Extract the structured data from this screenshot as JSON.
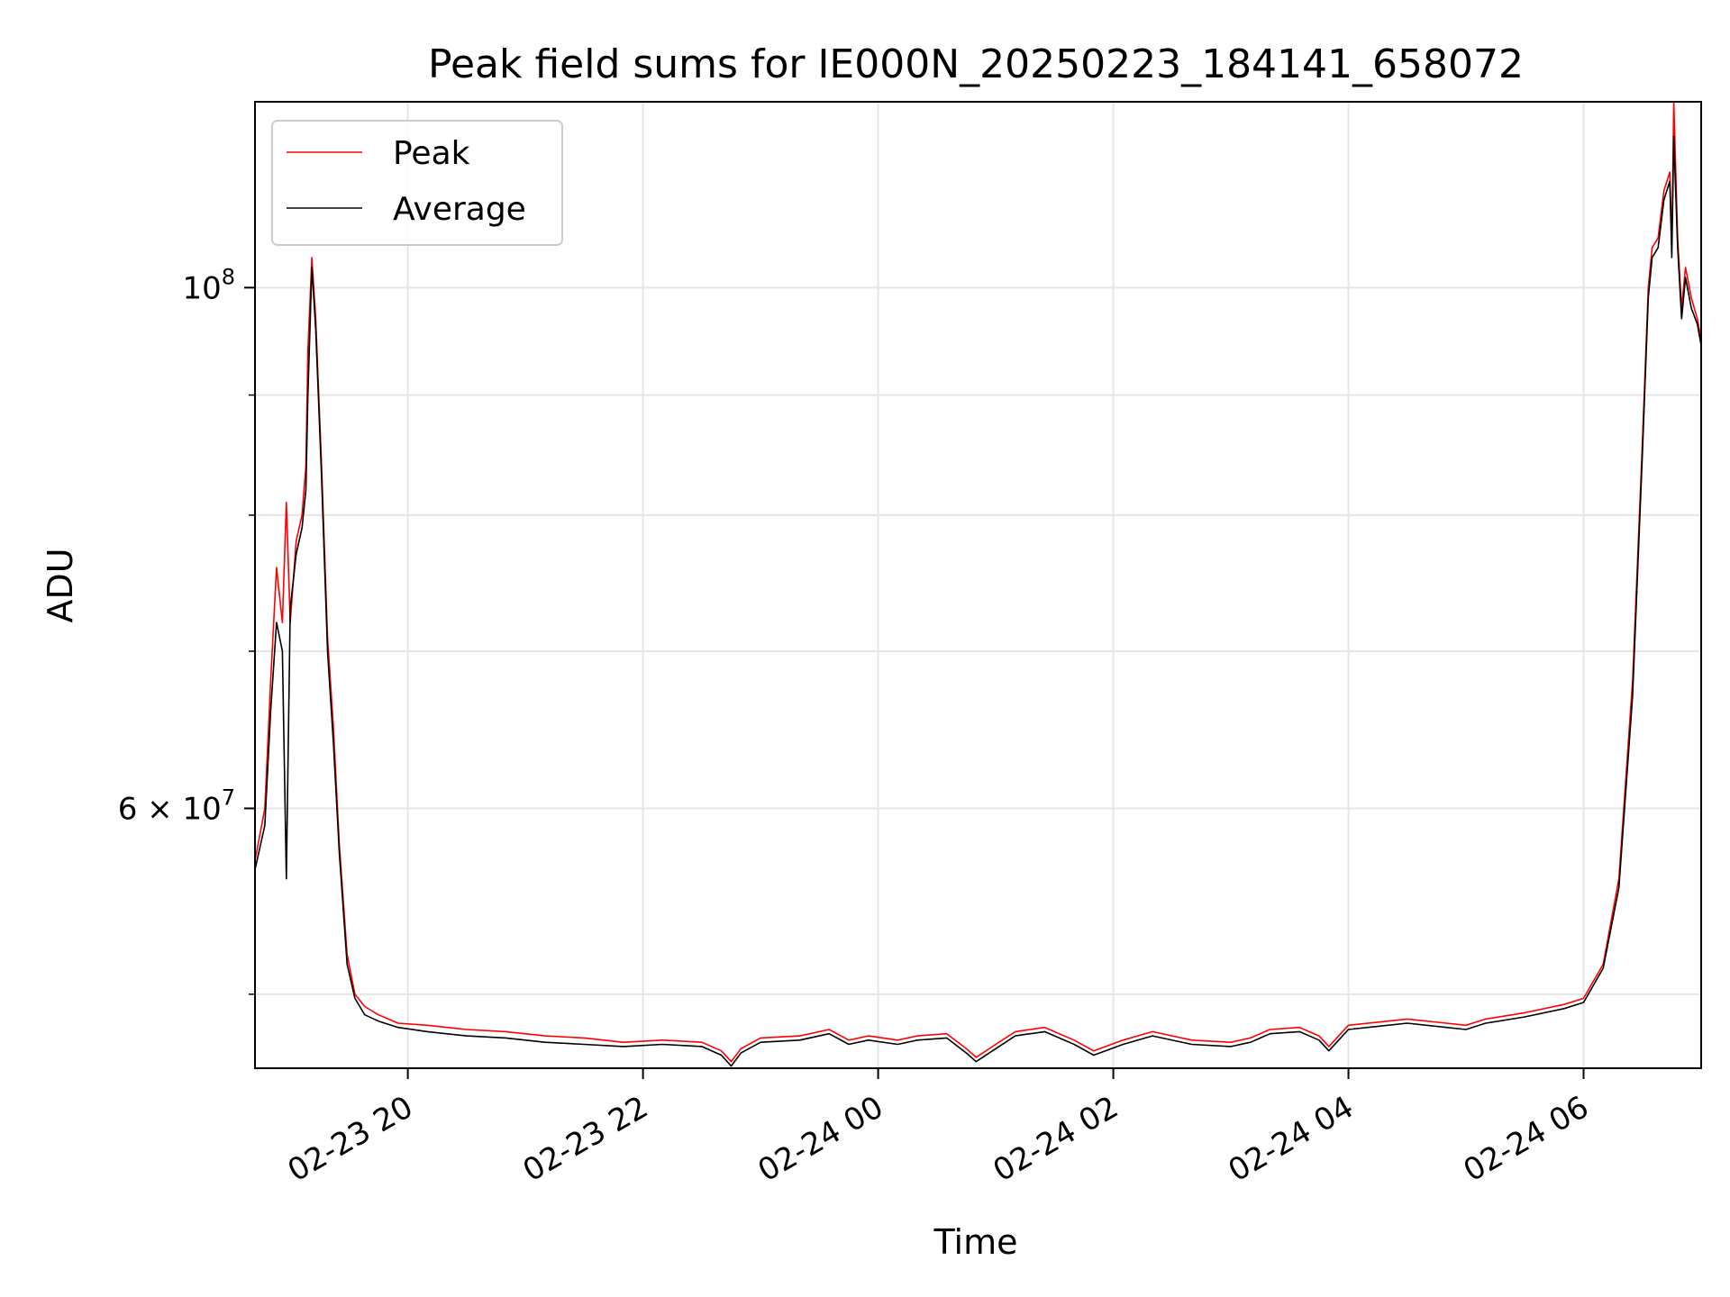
{
  "chart_data": {
    "type": "line",
    "title": "Peak field sums for IE000N_20250223_184141_658072",
    "xlabel": "Time",
    "ylabel": "ADU",
    "y_scale": "log",
    "xlim": [
      "2025-02-23 18:42",
      "2025-02-24 07:00"
    ],
    "ylim": [
      46500000,
      120000000
    ],
    "grid": true,
    "legend_position": "top-left",
    "x_ticks": [
      {
        "time": "2025-02-23 20:00",
        "label": "02-23 20"
      },
      {
        "time": "2025-02-23 22:00",
        "label": "02-23 22"
      },
      {
        "time": "2025-02-24 00:00",
        "label": "02-24 00"
      },
      {
        "time": "2025-02-24 02:00",
        "label": "02-24 02"
      },
      {
        "time": "2025-02-24 04:00",
        "label": "02-24 04"
      },
      {
        "time": "2025-02-24 06:00",
        "label": "02-24 06"
      }
    ],
    "y_major_ticks": [
      {
        "value": 100000000,
        "label_base": "10",
        "label_exp": "8",
        "label_mult": ""
      },
      {
        "value": 60000000,
        "label_base": "10",
        "label_exp": "7",
        "label_mult": "6 × "
      }
    ],
    "y_minor_ticks": [
      50000000,
      70000000,
      80000000,
      90000000
    ],
    "series": [
      {
        "name": "Peak",
        "color": "#ff0000",
        "points": [
          [
            "2025-02-23 18:42",
            57000000
          ],
          [
            "2025-02-23 18:47",
            60000000
          ],
          [
            "2025-02-23 18:50",
            68000000
          ],
          [
            "2025-02-23 18:53",
            76000000
          ],
          [
            "2025-02-23 18:56",
            72000000
          ],
          [
            "2025-02-23 18:58",
            81000000
          ],
          [
            "2025-02-23 19:00",
            72000000
          ],
          [
            "2025-02-23 19:03",
            78000000
          ],
          [
            "2025-02-23 19:06",
            80000000
          ],
          [
            "2025-02-23 19:08",
            84000000
          ],
          [
            "2025-02-23 19:09",
            94000000
          ],
          [
            "2025-02-23 19:11",
            103000000
          ],
          [
            "2025-02-23 19:13",
            97000000
          ],
          [
            "2025-02-23 19:16",
            84000000
          ],
          [
            "2025-02-23 19:19",
            71000000
          ],
          [
            "2025-02-23 19:22",
            65000000
          ],
          [
            "2025-02-23 19:25",
            58000000
          ],
          [
            "2025-02-23 19:29",
            52000000
          ],
          [
            "2025-02-23 19:33",
            50000000
          ],
          [
            "2025-02-23 19:38",
            49400000
          ],
          [
            "2025-02-23 19:45",
            49000000
          ],
          [
            "2025-02-23 19:55",
            48600000
          ],
          [
            "2025-02-23 20:10",
            48500000
          ],
          [
            "2025-02-23 20:30",
            48300000
          ],
          [
            "2025-02-23 20:50",
            48200000
          ],
          [
            "2025-02-23 21:10",
            48000000
          ],
          [
            "2025-02-23 21:30",
            47900000
          ],
          [
            "2025-02-23 21:50",
            47700000
          ],
          [
            "2025-02-23 22:10",
            47800000
          ],
          [
            "2025-02-23 22:30",
            47700000
          ],
          [
            "2025-02-23 22:40",
            47300000
          ],
          [
            "2025-02-23 22:45",
            46800000
          ],
          [
            "2025-02-23 22:50",
            47400000
          ],
          [
            "2025-02-23 23:00",
            47900000
          ],
          [
            "2025-02-23 23:20",
            48000000
          ],
          [
            "2025-02-23 23:35",
            48300000
          ],
          [
            "2025-02-23 23:45",
            47800000
          ],
          [
            "2025-02-23 23:55",
            48000000
          ],
          [
            "2025-02-24 00:10",
            47800000
          ],
          [
            "2025-02-24 00:20",
            48000000
          ],
          [
            "2025-02-24 00:35",
            48100000
          ],
          [
            "2025-02-24 00:45",
            47400000
          ],
          [
            "2025-02-24 00:50",
            47000000
          ],
          [
            "2025-02-24 01:00",
            47600000
          ],
          [
            "2025-02-24 01:10",
            48200000
          ],
          [
            "2025-02-24 01:25",
            48400000
          ],
          [
            "2025-02-24 01:40",
            47800000
          ],
          [
            "2025-02-24 01:50",
            47300000
          ],
          [
            "2025-02-24 02:05",
            47800000
          ],
          [
            "2025-02-24 02:20",
            48200000
          ],
          [
            "2025-02-24 02:40",
            47800000
          ],
          [
            "2025-02-24 03:00",
            47700000
          ],
          [
            "2025-02-24 03:10",
            47900000
          ],
          [
            "2025-02-24 03:20",
            48300000
          ],
          [
            "2025-02-24 03:35",
            48400000
          ],
          [
            "2025-02-24 03:45",
            48000000
          ],
          [
            "2025-02-24 03:50",
            47500000
          ],
          [
            "2025-02-24 04:00",
            48500000
          ],
          [
            "2025-02-24 04:30",
            48800000
          ],
          [
            "2025-02-24 04:50",
            48600000
          ],
          [
            "2025-02-24 05:00",
            48500000
          ],
          [
            "2025-02-24 05:10",
            48800000
          ],
          [
            "2025-02-24 05:30",
            49100000
          ],
          [
            "2025-02-24 05:50",
            49500000
          ],
          [
            "2025-02-24 06:00",
            49800000
          ],
          [
            "2025-02-24 06:10",
            51500000
          ],
          [
            "2025-02-24 06:18",
            56000000
          ],
          [
            "2025-02-24 06:25",
            68000000
          ],
          [
            "2025-02-24 06:30",
            86000000
          ],
          [
            "2025-02-24 06:33",
            100000000
          ],
          [
            "2025-02-24 06:35",
            104000000
          ],
          [
            "2025-02-24 06:38",
            105000000
          ],
          [
            "2025-02-24 06:41",
            110000000
          ],
          [
            "2025-02-24 06:44",
            112000000
          ],
          [
            "2025-02-24 06:45",
            104000000
          ],
          [
            "2025-02-24 06:46",
            120000000
          ],
          [
            "2025-02-24 06:48",
            105000000
          ],
          [
            "2025-02-24 06:50",
            98000000
          ],
          [
            "2025-02-24 06:52",
            102000000
          ],
          [
            "2025-02-24 06:55",
            99000000
          ],
          [
            "2025-02-24 06:58",
            97000000
          ],
          [
            "2025-02-24 07:00",
            95000000
          ]
        ]
      },
      {
        "name": "Average",
        "color": "#000000",
        "points": [
          [
            "2025-02-23 18:42",
            56500000
          ],
          [
            "2025-02-23 18:47",
            59000000
          ],
          [
            "2025-02-23 18:50",
            66000000
          ],
          [
            "2025-02-23 18:53",
            72000000
          ],
          [
            "2025-02-23 18:56",
            70000000
          ],
          [
            "2025-02-23 18:58",
            56000000
          ],
          [
            "2025-02-23 19:00",
            73000000
          ],
          [
            "2025-02-23 19:03",
            77000000
          ],
          [
            "2025-02-23 19:06",
            79000000
          ],
          [
            "2025-02-23 19:08",
            82000000
          ],
          [
            "2025-02-23 19:09",
            90000000
          ],
          [
            "2025-02-23 19:11",
            102000000
          ],
          [
            "2025-02-23 19:13",
            96000000
          ],
          [
            "2025-02-23 19:16",
            83000000
          ],
          [
            "2025-02-23 19:19",
            70000000
          ],
          [
            "2025-02-23 19:22",
            64000000
          ],
          [
            "2025-02-23 19:25",
            57500000
          ],
          [
            "2025-02-23 19:29",
            51500000
          ],
          [
            "2025-02-23 19:33",
            49800000
          ],
          [
            "2025-02-23 19:38",
            49000000
          ],
          [
            "2025-02-23 19:45",
            48700000
          ],
          [
            "2025-02-23 19:55",
            48400000
          ],
          [
            "2025-02-23 20:10",
            48200000
          ],
          [
            "2025-02-23 20:30",
            48000000
          ],
          [
            "2025-02-23 20:50",
            47900000
          ],
          [
            "2025-02-23 21:10",
            47700000
          ],
          [
            "2025-02-23 21:30",
            47600000
          ],
          [
            "2025-02-23 21:50",
            47500000
          ],
          [
            "2025-02-23 22:10",
            47600000
          ],
          [
            "2025-02-23 22:30",
            47500000
          ],
          [
            "2025-02-23 22:40",
            47100000
          ],
          [
            "2025-02-23 22:45",
            46600000
          ],
          [
            "2025-02-23 22:50",
            47200000
          ],
          [
            "2025-02-23 23:00",
            47700000
          ],
          [
            "2025-02-23 23:20",
            47800000
          ],
          [
            "2025-02-23 23:35",
            48100000
          ],
          [
            "2025-02-23 23:45",
            47600000
          ],
          [
            "2025-02-23 23:55",
            47800000
          ],
          [
            "2025-02-24 00:10",
            47600000
          ],
          [
            "2025-02-24 00:20",
            47800000
          ],
          [
            "2025-02-24 00:35",
            47900000
          ],
          [
            "2025-02-24 00:45",
            47200000
          ],
          [
            "2025-02-24 00:50",
            46800000
          ],
          [
            "2025-02-24 01:00",
            47400000
          ],
          [
            "2025-02-24 01:10",
            48000000
          ],
          [
            "2025-02-24 01:25",
            48200000
          ],
          [
            "2025-02-24 01:40",
            47600000
          ],
          [
            "2025-02-24 01:50",
            47100000
          ],
          [
            "2025-02-24 02:05",
            47600000
          ],
          [
            "2025-02-24 02:20",
            48000000
          ],
          [
            "2025-02-24 02:40",
            47600000
          ],
          [
            "2025-02-24 03:00",
            47500000
          ],
          [
            "2025-02-24 03:10",
            47700000
          ],
          [
            "2025-02-24 03:20",
            48100000
          ],
          [
            "2025-02-24 03:35",
            48200000
          ],
          [
            "2025-02-24 03:45",
            47800000
          ],
          [
            "2025-02-24 03:50",
            47300000
          ],
          [
            "2025-02-24 04:00",
            48300000
          ],
          [
            "2025-02-24 04:30",
            48600000
          ],
          [
            "2025-02-24 04:50",
            48400000
          ],
          [
            "2025-02-24 05:00",
            48300000
          ],
          [
            "2025-02-24 05:10",
            48600000
          ],
          [
            "2025-02-24 05:30",
            48900000
          ],
          [
            "2025-02-24 05:50",
            49300000
          ],
          [
            "2025-02-24 06:00",
            49600000
          ],
          [
            "2025-02-24 06:10",
            51300000
          ],
          [
            "2025-02-24 06:18",
            55500000
          ],
          [
            "2025-02-24 06:25",
            67000000
          ],
          [
            "2025-02-24 06:30",
            85000000
          ],
          [
            "2025-02-24 06:33",
            99000000
          ],
          [
            "2025-02-24 06:35",
            103000000
          ],
          [
            "2025-02-24 06:38",
            104000000
          ],
          [
            "2025-02-24 06:41",
            109000000
          ],
          [
            "2025-02-24 06:44",
            111000000
          ],
          [
            "2025-02-24 06:45",
            103000000
          ],
          [
            "2025-02-24 06:46",
            116000000
          ],
          [
            "2025-02-24 06:48",
            104000000
          ],
          [
            "2025-02-24 06:50",
            97000000
          ],
          [
            "2025-02-24 06:52",
            101000000
          ],
          [
            "2025-02-24 06:55",
            98000000
          ],
          [
            "2025-02-24 06:58",
            96500000
          ],
          [
            "2025-02-24 07:00",
            94500000
          ]
        ]
      }
    ]
  }
}
